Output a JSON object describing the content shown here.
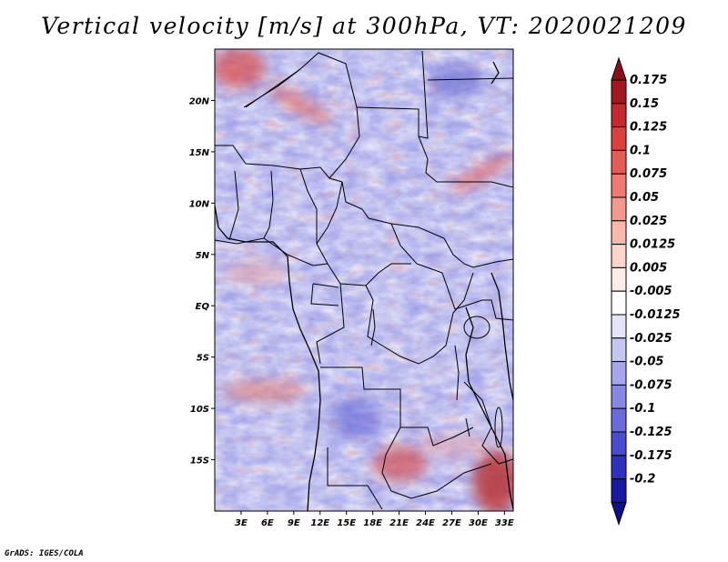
{
  "title": "Vertical velocity [m/s] at 300hPa, VT: 2020021209",
  "footer": "GrADS: IGES/COLA",
  "map": {
    "lat_range": [
      -20,
      25
    ],
    "lon_range": [
      0,
      34
    ],
    "lat_ticks": [
      {
        "value": 20,
        "label": "20N"
      },
      {
        "value": 15,
        "label": "15N"
      },
      {
        "value": 10,
        "label": "10N"
      },
      {
        "value": 5,
        "label": "5N"
      },
      {
        "value": 0,
        "label": "EQ"
      },
      {
        "value": -5,
        "label": "5S"
      },
      {
        "value": -10,
        "label": "10S"
      },
      {
        "value": -15,
        "label": "15S"
      }
    ],
    "lon_ticks": [
      {
        "value": 3,
        "label": "3E"
      },
      {
        "value": 6,
        "label": "6E"
      },
      {
        "value": 9,
        "label": "9E"
      },
      {
        "value": 12,
        "label": "12E"
      },
      {
        "value": 15,
        "label": "15E"
      },
      {
        "value": 18,
        "label": "18E"
      },
      {
        "value": 21,
        "label": "21E"
      },
      {
        "value": 24,
        "label": "24E"
      },
      {
        "value": 27,
        "label": "27E"
      },
      {
        "value": 30,
        "label": "30E"
      },
      {
        "value": 33,
        "label": "33E"
      }
    ]
  },
  "colorbar": {
    "levels": [
      {
        "label": "0.175",
        "color": "#a01820"
      },
      {
        "label": "0.15",
        "color": "#c52a2e"
      },
      {
        "label": "0.125",
        "color": "#d9403e"
      },
      {
        "label": "0.1",
        "color": "#e45c56"
      },
      {
        "label": "0.075",
        "color": "#ec7a72"
      },
      {
        "label": "0.05",
        "color": "#f2998f"
      },
      {
        "label": "0.025",
        "color": "#f7b8ae"
      },
      {
        "label": "0.0125",
        "color": "#fbd5cd"
      },
      {
        "label": "0.005",
        "color": "#fdebe6"
      },
      {
        "label": "-0.005",
        "color": "#ffffff"
      },
      {
        "label": "-0.0125",
        "color": "#e4e4f8"
      },
      {
        "label": "-0.025",
        "color": "#c5c5f2"
      },
      {
        "label": "-0.05",
        "color": "#a6a6ec"
      },
      {
        "label": "-0.075",
        "color": "#8888e4"
      },
      {
        "label": "-0.1",
        "color": "#6a6adc"
      },
      {
        "label": "-0.125",
        "color": "#4c4cd0"
      },
      {
        "label": "-0.175",
        "color": "#3030bc"
      },
      {
        "label": "-0.2",
        "color": "#1818a0"
      }
    ],
    "top_color": "#8a1018",
    "bottom_color": "#10108a"
  }
}
